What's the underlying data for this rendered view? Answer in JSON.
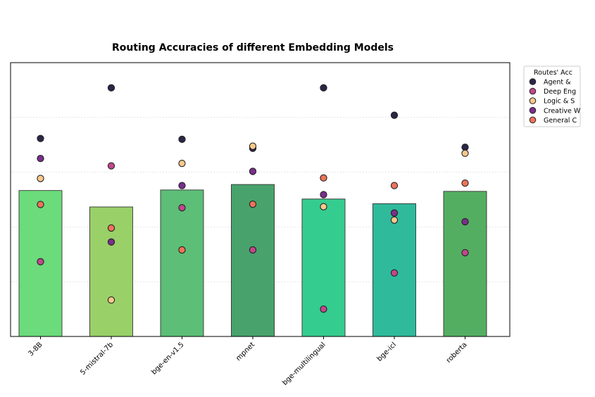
{
  "chart_data": {
    "type": "bar",
    "title": "Routing Accuracies of different Embedding Models",
    "xlabel": "",
    "ylabel": "",
    "ylim": [
      0,
      1
    ],
    "grid": "horizontal",
    "categories": [
      "3-8B",
      "5-mistral-7b",
      "bge-en-v1.5",
      "mpnet",
      "bge-multilingual",
      "bge-icl",
      "roberta"
    ],
    "bar_values": [
      0.533,
      0.473,
      0.535,
      0.555,
      0.502,
      0.485,
      0.53
    ],
    "bar_colors": [
      "#6bdb7b",
      "#99d068",
      "#5cbe77",
      "#48a26c",
      "#35cc8f",
      "#2fba9c",
      "#54ae62"
    ],
    "legend": {
      "title": "Routes' Acc",
      "position": "outside-right",
      "entries": [
        "Agent &",
        "Deep Eng",
        "Logic & S",
        "Creative W",
        "General C"
      ]
    },
    "series": [
      {
        "name": "Agent &",
        "color": "#2b2548",
        "values": [
          0.723,
          0.908,
          0.72,
          0.687,
          0.908,
          0.808,
          0.691
        ]
      },
      {
        "name": "Deep Eng",
        "color": "#c1478d",
        "values": [
          0.273,
          0.623,
          0.47,
          0.316,
          0.1,
          0.232,
          0.306
        ]
      },
      {
        "name": "Logic & S",
        "color": "#f8c88c",
        "values": [
          0.577,
          0.133,
          0.632,
          0.695,
          0.474,
          0.425,
          0.669
        ]
      },
      {
        "name": "Creative W",
        "color": "#7a2e8c",
        "values": [
          0.65,
          0.345,
          0.551,
          0.603,
          0.518,
          0.451,
          0.419
        ]
      },
      {
        "name": "General C",
        "color": "#ee735a",
        "values": [
          0.482,
          0.396,
          0.316,
          0.483,
          0.579,
          0.551,
          0.56
        ]
      }
    ]
  }
}
